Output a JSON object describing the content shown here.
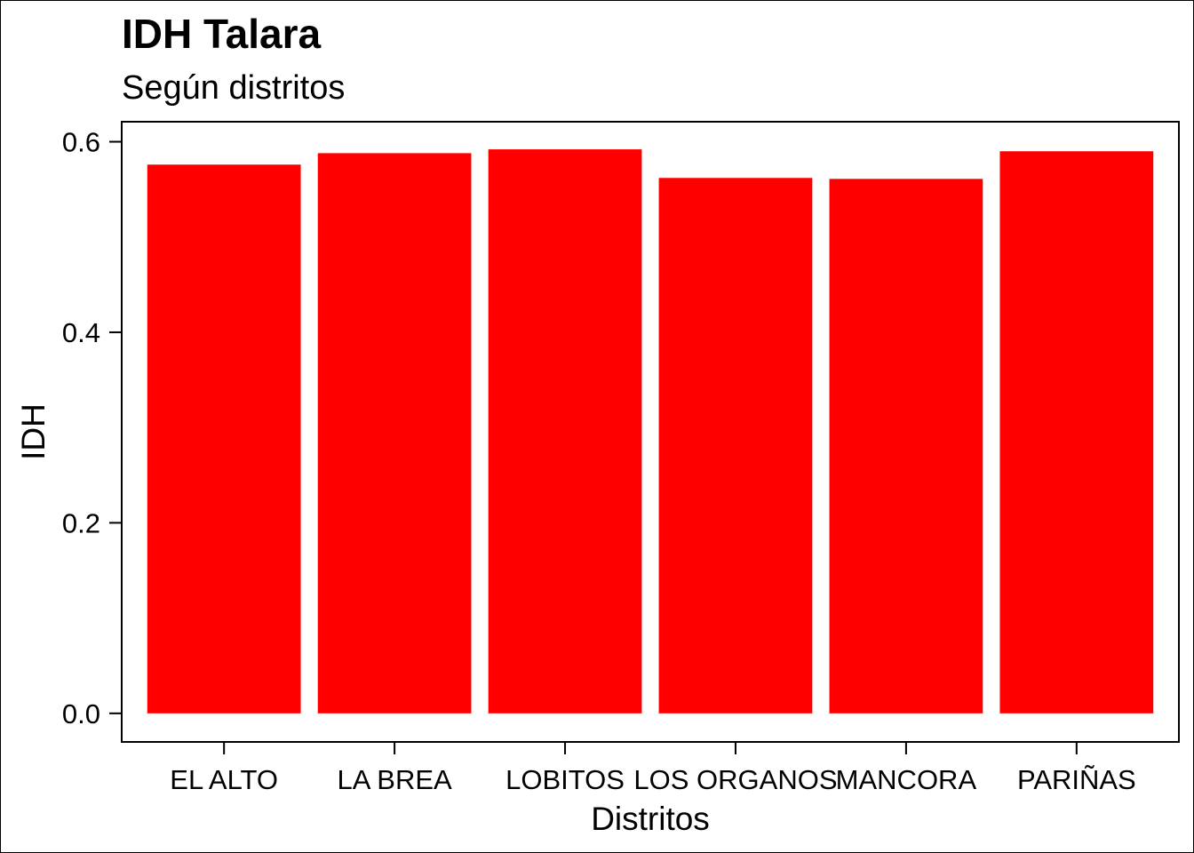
{
  "chart_data": {
    "type": "bar",
    "title": "IDH Talara",
    "subtitle": "Según distritos",
    "xlabel": "Distritos",
    "ylabel": "IDH",
    "categories": [
      "EL ALTO",
      "LA BREA",
      "LOBITOS",
      "LOS ORGANOS",
      "MANCORA",
      "PARIÑAS"
    ],
    "values": [
      0.576,
      0.588,
      0.592,
      0.562,
      0.561,
      0.59
    ],
    "yticks": [
      0.0,
      0.2,
      0.4,
      0.6
    ],
    "ytick_labels": [
      "0.0",
      "0.2",
      "0.4",
      "0.6"
    ],
    "ylim": [
      -0.03,
      0.621
    ],
    "bar_color": "#ff0000",
    "grid": false,
    "legend": "none"
  }
}
